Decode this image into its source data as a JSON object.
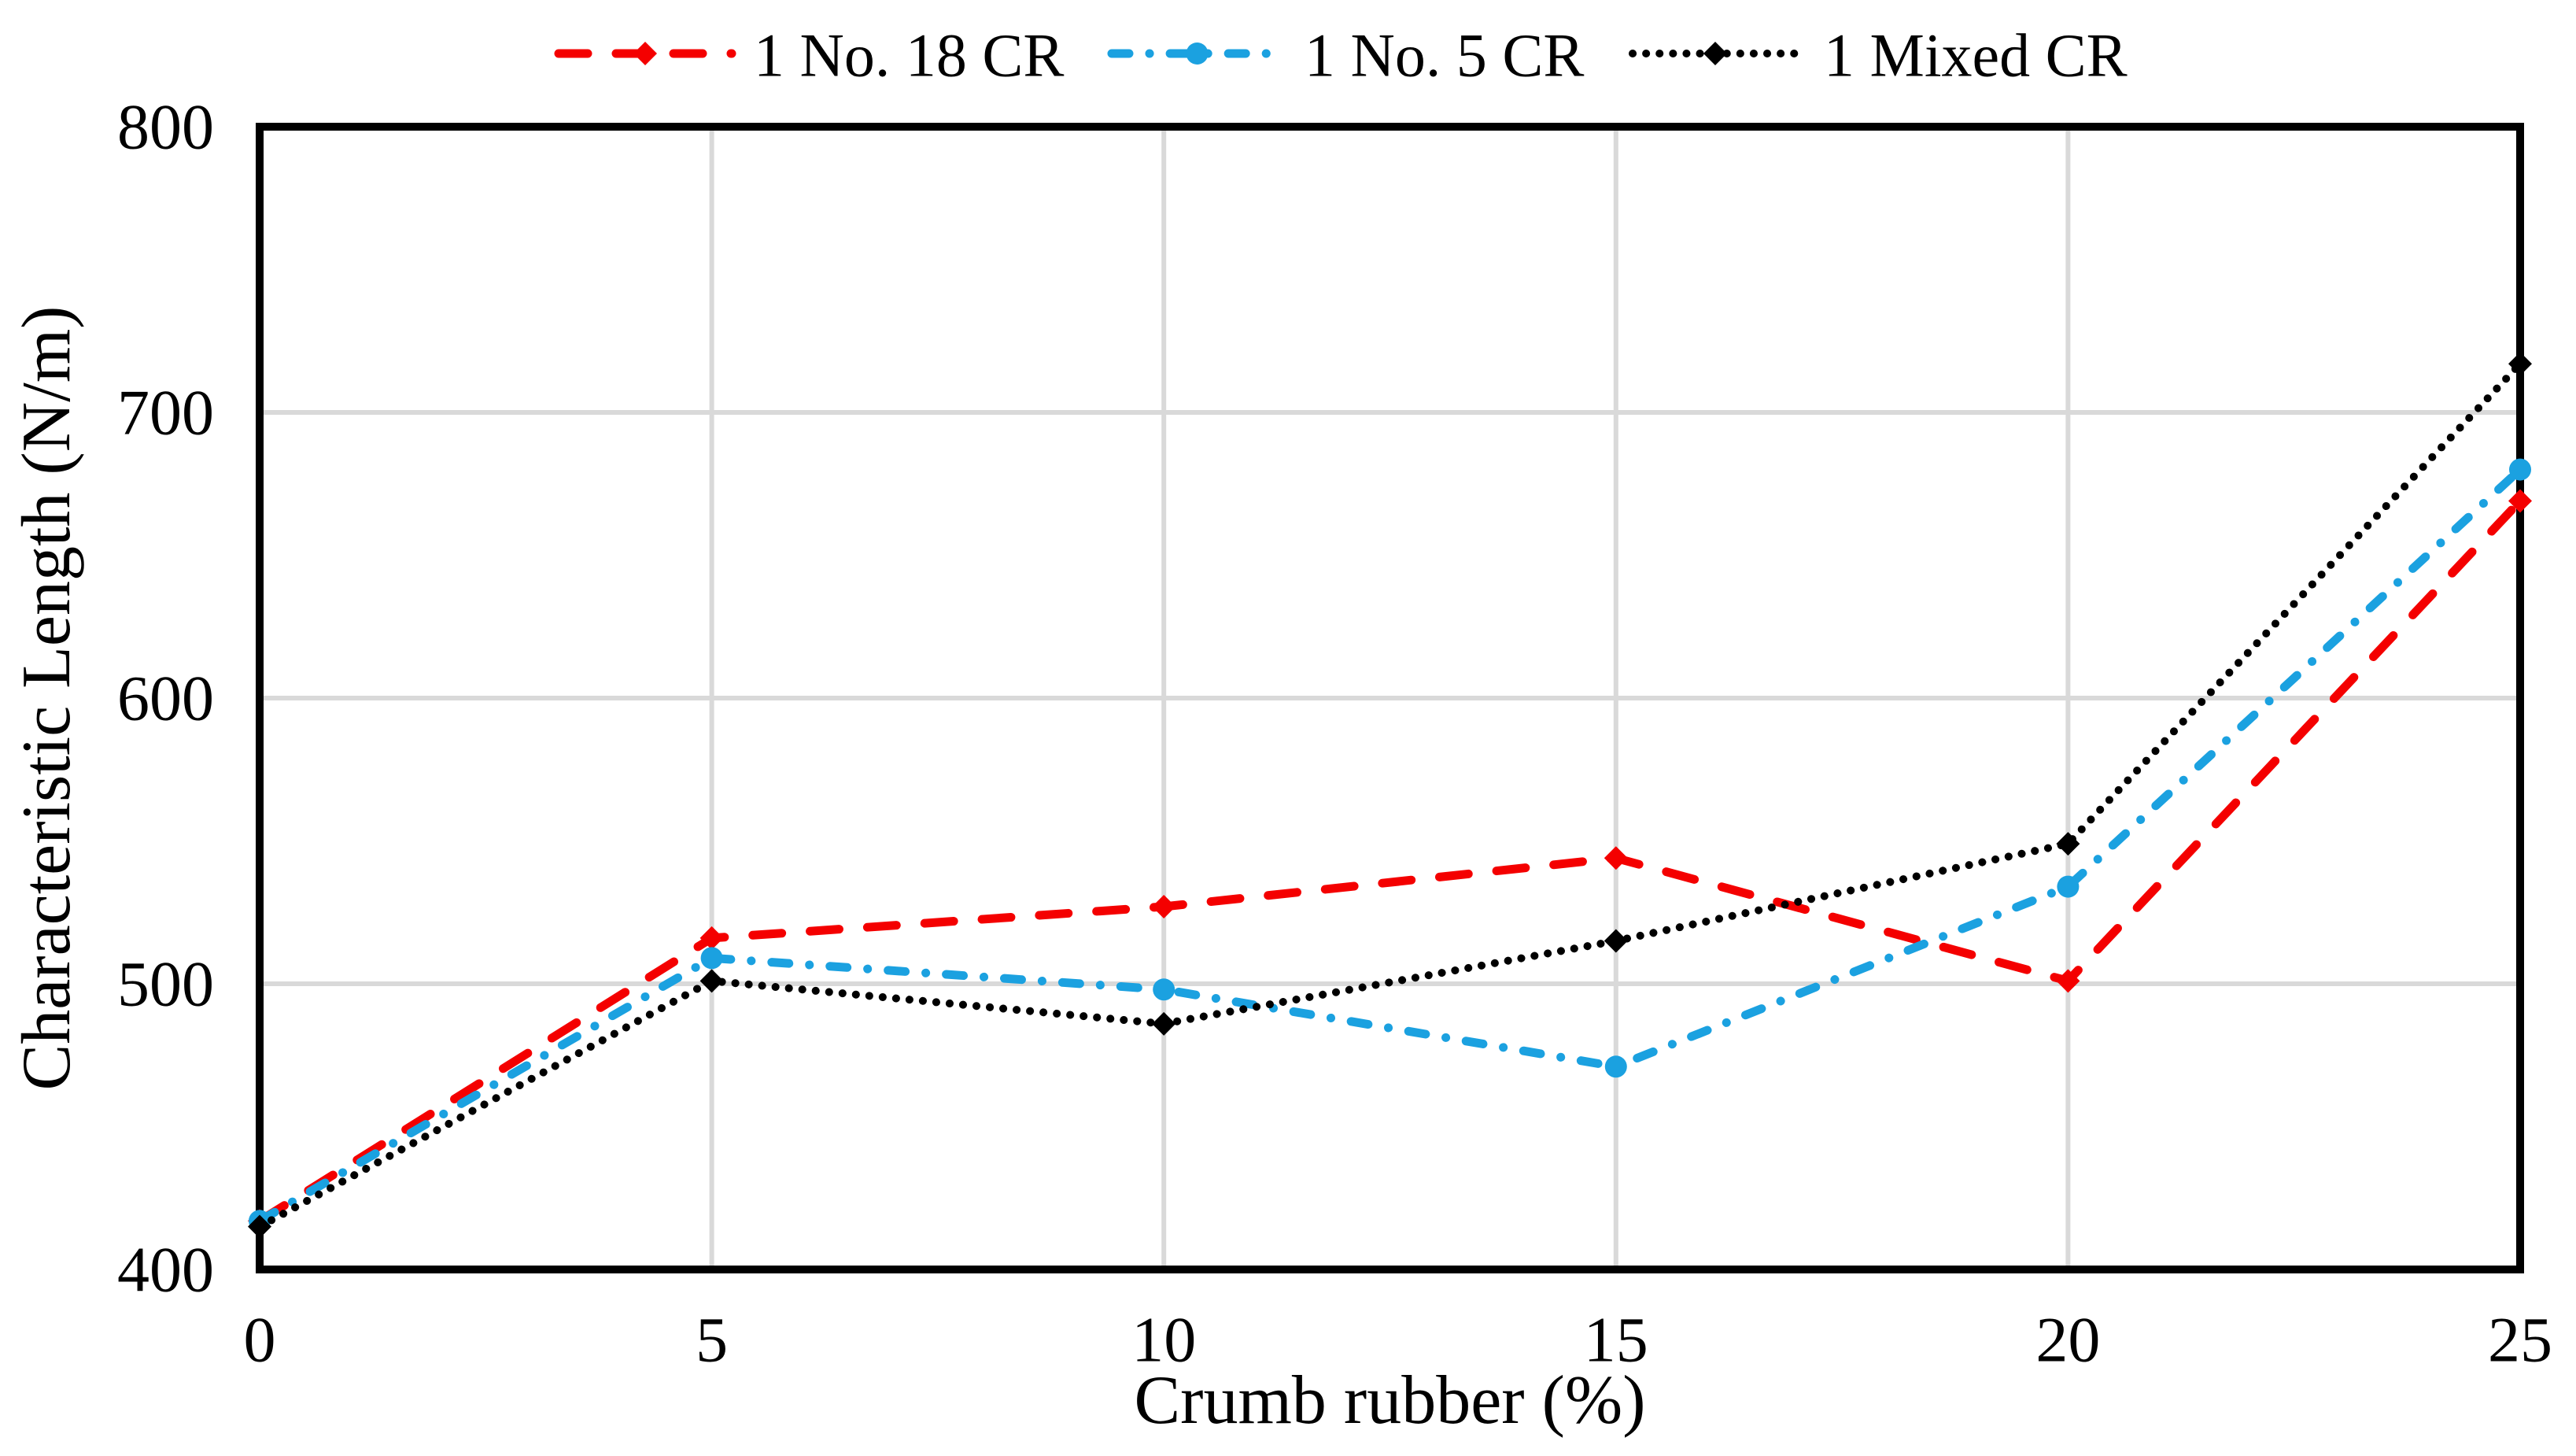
{
  "chart_data": {
    "type": "line",
    "title": "",
    "xlabel": "Crumb rubber (%)",
    "ylabel": "Characteristic Length (N/m)",
    "x": [
      0,
      5,
      10,
      15,
      20,
      25
    ],
    "xlim": [
      0,
      25
    ],
    "ylim": [
      400,
      800
    ],
    "x_ticks": [
      "0",
      "5",
      "10",
      "15",
      "20",
      "25"
    ],
    "y_ticks": [
      "400",
      "500",
      "600",
      "700",
      "800"
    ],
    "grid": true,
    "grid_color": "#d9d9d9",
    "frame_color": "#000000",
    "background_color": "#ffffff",
    "legend_position": "top-center",
    "series": [
      {
        "name": "1 No. 18 CR",
        "color": "#f40000",
        "dash": "long-dash",
        "marker": "diamond",
        "values": [
          417,
          516,
          527,
          544,
          501,
          669
        ]
      },
      {
        "name": "1 No. 5 CR",
        "color": "#1ba1e0",
        "dash": "dash-dot",
        "marker": "circle",
        "values": [
          417,
          509,
          498,
          471,
          534,
          680
        ]
      },
      {
        "name": "1 Mixed CR",
        "color": "#000000",
        "dash": "dot",
        "marker": "diamond",
        "values": [
          415,
          501,
          486,
          515,
          549,
          717
        ]
      }
    ]
  }
}
